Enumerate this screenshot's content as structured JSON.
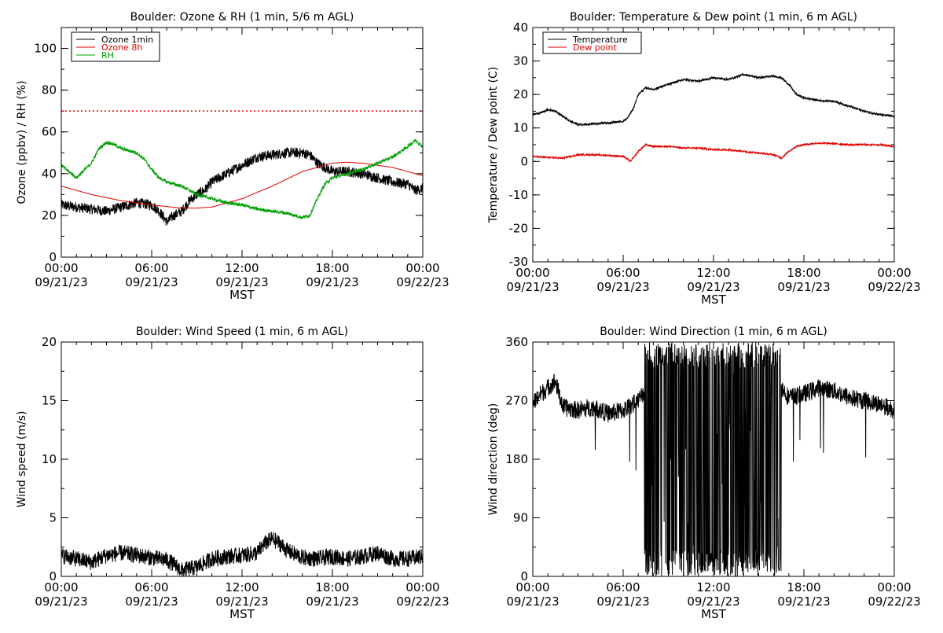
{
  "colors": {
    "black": "#000000",
    "red": "#e00000",
    "green": "#00a000"
  },
  "chart_data": [
    {
      "type": "line",
      "title": "Boulder: Ozone & RH (1 min, 5/6 m AGL)",
      "ylabel": "Ozone (ppbv) / RH (%)",
      "xlabel": "MST",
      "xlim": [
        0,
        24
      ],
      "ylim": [
        0,
        110
      ],
      "yticks": [
        0,
        20,
        40,
        60,
        80,
        100
      ],
      "x_ticks": [
        {
          "x": 0,
          "time": "00:00",
          "date": "09/21/23"
        },
        {
          "x": 6,
          "time": "06:00",
          "date": "09/21/23"
        },
        {
          "x": 12,
          "time": "12:00",
          "date": "09/21/23"
        },
        {
          "x": 18,
          "time": "18:00",
          "date": "09/21/23"
        },
        {
          "x": 24,
          "time": "00:00",
          "date": "09/22/23"
        }
      ],
      "legend": {
        "position": "top-left",
        "entries": [
          "Ozone 1min",
          "Ozone 8h",
          "RH"
        ]
      },
      "reference_line": {
        "y": 70,
        "style": "dotted",
        "color": "#e00000"
      },
      "series": [
        {
          "name": "Ozone 1min",
          "color": "#000000",
          "noise": 2.5,
          "x": [
            0,
            1,
            2,
            3,
            4,
            5,
            6,
            6.5,
            7,
            7.5,
            8,
            8.5,
            9,
            9.5,
            10,
            10.5,
            11,
            12,
            13,
            14,
            15,
            16,
            16.5,
            17,
            17.5,
            18,
            19,
            20,
            21,
            22,
            23,
            23.5,
            24
          ],
          "y": [
            25,
            24,
            23,
            22,
            24,
            26,
            25,
            22,
            17,
            20,
            22,
            27,
            30,
            32,
            36,
            38,
            40,
            44,
            48,
            49,
            50,
            50,
            49,
            45,
            43,
            41,
            41,
            40,
            38,
            36,
            35,
            32,
            33
          ]
        },
        {
          "name": "Ozone 8h",
          "color": "#e00000",
          "noise": 0,
          "x": [
            0,
            2,
            4,
            6,
            8,
            9,
            10,
            12,
            14,
            16,
            18,
            19,
            20,
            22,
            24
          ],
          "y": [
            34,
            30,
            27,
            25,
            23.5,
            23.5,
            24,
            28,
            34,
            41,
            45,
            45.5,
            45,
            43,
            39
          ]
        },
        {
          "name": "RH",
          "color": "#00a000",
          "noise": 0.8,
          "x": [
            0,
            1,
            2,
            2.5,
            3,
            3.5,
            4,
            5,
            5.5,
            6,
            6.5,
            7,
            7.5,
            8,
            9,
            10,
            11,
            12,
            13,
            14,
            15,
            16,
            16.5,
            17,
            17.5,
            18,
            19,
            20,
            21,
            22,
            23,
            23.5,
            24
          ],
          "y": [
            44,
            38,
            45,
            52,
            55,
            54,
            52,
            50,
            47,
            42,
            38,
            36,
            35,
            34,
            30,
            28,
            26,
            25,
            23,
            22,
            21,
            19,
            20,
            28,
            35,
            38,
            40,
            42,
            45,
            48,
            53,
            56,
            53
          ]
        }
      ]
    },
    {
      "type": "line",
      "title": "Boulder: Temperature & Dew point (1 min, 6 m AGL)",
      "ylabel": "Temperature / Dew point (C)",
      "xlabel": "MST",
      "xlim": [
        0,
        24
      ],
      "ylim": [
        -30,
        40
      ],
      "yticks": [
        -30,
        -20,
        -10,
        0,
        10,
        20,
        30,
        40
      ],
      "x_ticks": [
        {
          "x": 0,
          "time": "00:00",
          "date": "09/21/23"
        },
        {
          "x": 6,
          "time": "06:00",
          "date": "09/21/23"
        },
        {
          "x": 12,
          "time": "12:00",
          "date": "09/21/23"
        },
        {
          "x": 18,
          "time": "18:00",
          "date": "09/21/23"
        },
        {
          "x": 24,
          "time": "00:00",
          "date": "09/22/23"
        }
      ],
      "legend": {
        "position": "top-left",
        "entries": [
          "Temperature",
          "Dew point"
        ]
      },
      "series": [
        {
          "name": "Temperature",
          "color": "#000000",
          "noise": 0.3,
          "x": [
            0,
            0.5,
            1,
            1.5,
            2,
            2.5,
            3,
            3.5,
            4,
            5,
            6,
            6.3,
            6.7,
            7,
            7.5,
            8,
            9,
            10,
            11,
            12,
            13,
            14,
            15,
            16,
            16.5,
            17,
            17.5,
            18,
            19,
            20,
            21,
            22,
            23,
            24
          ],
          "y": [
            14,
            14.5,
            15.5,
            15,
            13.5,
            12,
            11,
            11,
            11.2,
            11.5,
            12,
            13,
            16,
            20,
            22,
            21.5,
            23,
            24.5,
            24,
            25,
            24.5,
            26,
            25,
            25.5,
            25,
            23,
            20,
            19,
            18.2,
            18,
            16.5,
            15,
            14,
            13.5
          ]
        },
        {
          "name": "Dew point",
          "color": "#e00000",
          "noise": 0.25,
          "x": [
            0,
            1,
            2,
            3,
            4,
            5,
            6,
            6.5,
            7,
            7.5,
            8,
            9,
            10,
            11,
            12,
            13,
            14,
            15,
            16,
            16.5,
            17,
            17.5,
            18,
            19,
            20,
            21,
            22,
            23,
            24
          ],
          "y": [
            1.5,
            1.2,
            1,
            2,
            2,
            1.8,
            1.5,
            0,
            3,
            5,
            4.5,
            4.5,
            4,
            4,
            3.5,
            3.5,
            3,
            2.5,
            2,
            1,
            3,
            4.5,
            5,
            5.5,
            5.3,
            5,
            5,
            5,
            4.5
          ]
        }
      ]
    },
    {
      "type": "line",
      "title": "Boulder: Wind Speed (1 min, 6 m AGL)",
      "ylabel": "Wind speed (m/s)",
      "xlabel": "MST",
      "xlim": [
        0,
        24
      ],
      "ylim": [
        0,
        20
      ],
      "yticks": [
        0,
        5,
        10,
        15,
        20
      ],
      "x_ticks": [
        {
          "x": 0,
          "time": "00:00",
          "date": "09/21/23"
        },
        {
          "x": 6,
          "time": "06:00",
          "date": "09/21/23"
        },
        {
          "x": 12,
          "time": "12:00",
          "date": "09/21/23"
        },
        {
          "x": 18,
          "time": "18:00",
          "date": "09/21/23"
        },
        {
          "x": 24,
          "time": "00:00",
          "date": "09/22/23"
        }
      ],
      "series": [
        {
          "name": "",
          "color": "#000000",
          "noise": 0.7,
          "floor": 0,
          "x": [
            0,
            1,
            2,
            3,
            4,
            5,
            6,
            7,
            7.5,
            8,
            9,
            10,
            11,
            12,
            13,
            13.5,
            14,
            14.5,
            15,
            16,
            17,
            18,
            19,
            20,
            21,
            22,
            23,
            24
          ],
          "y": [
            1.8,
            1.5,
            1.2,
            1.8,
            2.0,
            1.8,
            1.6,
            1.4,
            1.0,
            0.5,
            0.8,
            1.5,
            1.7,
            1.8,
            2.0,
            2.8,
            3.2,
            2.8,
            2.2,
            1.6,
            1.5,
            1.7,
            1.5,
            1.7,
            2.0,
            1.5,
            1.5,
            1.7
          ]
        }
      ]
    },
    {
      "type": "line",
      "title": "Boulder: Wind Direction (1 min, 6 m AGL)",
      "ylabel": "Wind direction (deg)",
      "xlabel": "MST",
      "xlim": [
        0,
        24
      ],
      "ylim": [
        0,
        360
      ],
      "yticks": [
        0,
        90,
        180,
        270,
        360
      ],
      "x_ticks": [
        {
          "x": 0,
          "time": "00:00",
          "date": "09/21/23"
        },
        {
          "x": 6,
          "time": "06:00",
          "date": "09/21/23"
        },
        {
          "x": 12,
          "time": "12:00",
          "date": "09/21/23"
        },
        {
          "x": 18,
          "time": "18:00",
          "date": "09/21/23"
        },
        {
          "x": 24,
          "time": "00:00",
          "date": "09/22/23"
        }
      ],
      "variable_period": {
        "from": 7.4,
        "to": 16.5
      },
      "series": [
        {
          "name": "",
          "color": "#000000",
          "noise": 14,
          "x": [
            0,
            0.5,
            1,
            1.5,
            2,
            3,
            4,
            5,
            6,
            7,
            7.4,
            16.5,
            17,
            18,
            19,
            20,
            21,
            22,
            23,
            24
          ],
          "y": [
            265,
            280,
            290,
            300,
            260,
            255,
            260,
            250,
            255,
            270,
            285,
            290,
            275,
            280,
            290,
            285,
            275,
            270,
            265,
            255
          ]
        }
      ]
    }
  ]
}
